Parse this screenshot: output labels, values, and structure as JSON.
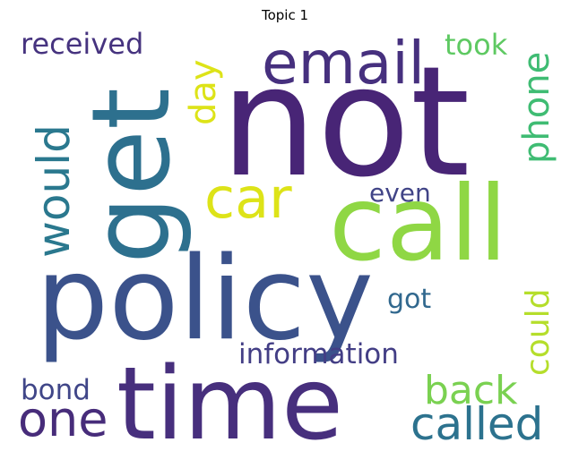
{
  "title": "Topic 1",
  "words": [
    {
      "text": "not",
      "color": "#482576"
    },
    {
      "text": "policy",
      "color": "#3b528b"
    },
    {
      "text": "time",
      "color": "#472f7d"
    },
    {
      "text": "get",
      "color": "#2d708e"
    },
    {
      "text": "call",
      "color": "#8fd744"
    },
    {
      "text": "email",
      "color": "#46307e"
    },
    {
      "text": "would",
      "color": "#2a788e"
    },
    {
      "text": "car",
      "color": "#dde318"
    },
    {
      "text": "called",
      "color": "#2c728e"
    },
    {
      "text": "one",
      "color": "#472c7a"
    },
    {
      "text": "phone",
      "color": "#3fbc73"
    },
    {
      "text": "back",
      "color": "#7ad151"
    },
    {
      "text": "could",
      "color": "#b5de2b"
    },
    {
      "text": "day",
      "color": "#dde318"
    },
    {
      "text": "received",
      "color": "#46337f"
    },
    {
      "text": "took",
      "color": "#5ec962"
    },
    {
      "text": "information",
      "color": "#433e85"
    },
    {
      "text": "even",
      "color": "#414487"
    },
    {
      "text": "got",
      "color": "#31688e"
    },
    {
      "text": "bond",
      "color": "#404688"
    }
  ]
}
